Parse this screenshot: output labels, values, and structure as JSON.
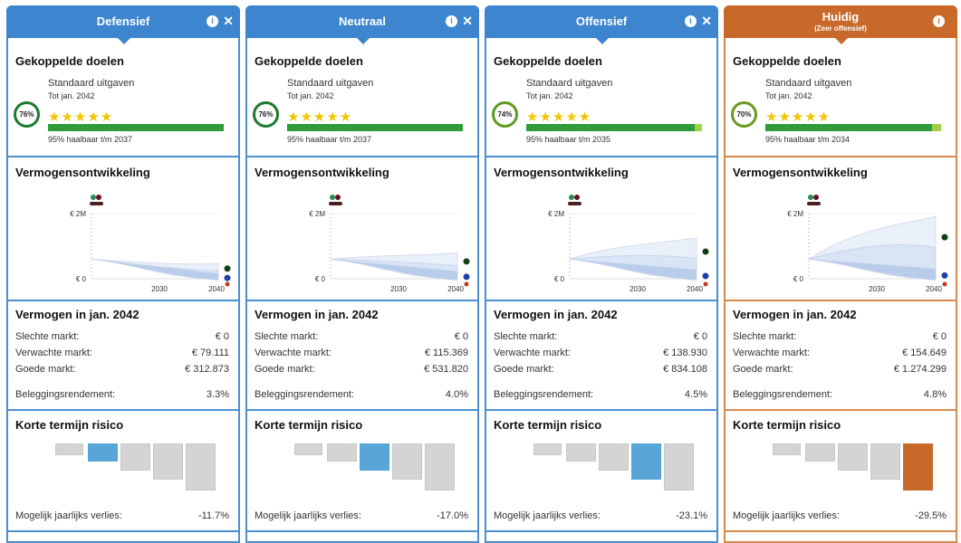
{
  "labels": {
    "goals_title": "Gekoppelde doelen",
    "goal_name": "Standaard uitgaven",
    "goal_date": "Tot jan. 2042",
    "chart_title": "Vermogensontwikkeling",
    "y_top": "€ 2M",
    "y_zero": "€ 0",
    "x_ticks": [
      "2030",
      "2040"
    ],
    "wealth_title": "Vermogen in jan. 2042",
    "bad": "Slechte markt:",
    "expected": "Verwachte markt:",
    "good": "Goede markt:",
    "return": "Beleggingsrendement:",
    "risk_title": "Korte termijn risico",
    "loss": "Mogelijk jaarlijks verlies:"
  },
  "colors": {
    "blue": "#3d86cf",
    "orange": "#c8692a",
    "risk_blue": "#5aa5d8",
    "risk_orange": "#c8692a"
  },
  "columns": [
    {
      "title": "Defensief",
      "subtitle": "",
      "current": false,
      "closable": true,
      "score": "76%",
      "score_color": "#1e7a2e",
      "stars": "★★★★★",
      "feasible": "95% haalbaar t/m 2037",
      "feasible_fraction": 1.0,
      "chart": {
        "start": 600000,
        "bad": 0,
        "expected": 79111,
        "good": 312873
      },
      "bad": "€ 0",
      "expected": "€ 79.111",
      "good": "€ 312.873",
      "return": "3.3%",
      "risk_level": 2,
      "loss": "-11.7%"
    },
    {
      "title": "Neutraal",
      "subtitle": "",
      "current": false,
      "closable": true,
      "score": "76%",
      "score_color": "#1e7a2e",
      "stars": "★★★★★",
      "feasible": "95% haalbaar t/m 2037",
      "feasible_fraction": 1.0,
      "chart": {
        "start": 600000,
        "bad": 0,
        "expected": 115369,
        "good": 531820
      },
      "bad": "€ 0",
      "expected": "€ 115.369",
      "good": "€ 531.820",
      "return": "4.0%",
      "risk_level": 3,
      "loss": "-17.0%"
    },
    {
      "title": "Offensief",
      "subtitle": "",
      "current": false,
      "closable": true,
      "score": "74%",
      "score_color": "#5f9a1e",
      "stars": "★★★★★",
      "feasible": "95% haalbaar t/m 2035",
      "feasible_fraction": 0.96,
      "chart": {
        "start": 600000,
        "bad": 0,
        "expected": 138930,
        "good": 834108
      },
      "bad": "€ 0",
      "expected": "€ 138.930",
      "good": "€ 834.108",
      "return": "4.5%",
      "risk_level": 4,
      "loss": "-23.1%"
    },
    {
      "title": "Huidig",
      "subtitle": "(Zeer offensief)",
      "current": true,
      "closable": false,
      "score": "70%",
      "score_color": "#6a9a1e",
      "stars": "★★★★★",
      "feasible": "95% haalbaar t/m 2034",
      "feasible_fraction": 0.95,
      "chart": {
        "start": 600000,
        "bad": 0,
        "expected": 154649,
        "good": 1274299
      },
      "bad": "€ 0",
      "expected": "€ 154.649",
      "good": "€ 1.274.299",
      "return": "4.8%",
      "risk_level": 5,
      "loss": "-29.5%"
    }
  ]
}
